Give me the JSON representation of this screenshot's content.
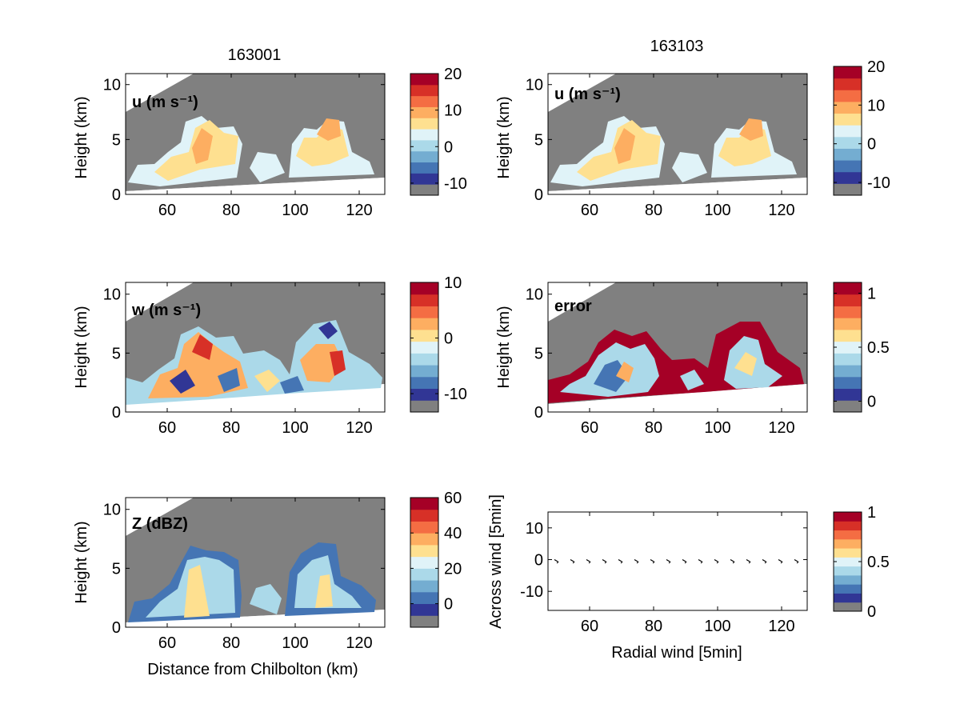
{
  "figure": {
    "titles": [
      "163001",
      "163103"
    ],
    "xlabel_left": "Distance from Chilbolton (km)",
    "ylabel": "Height (km)"
  },
  "colors": {
    "fill_gray": "#808080",
    "cmap": [
      "#313695",
      "#4575b4",
      "#74add1",
      "#abd9e9",
      "#e0f3f8",
      "#fee090",
      "#fdae61",
      "#f46d43",
      "#d73027",
      "#a50026"
    ]
  },
  "chart_data": [
    {
      "type": "heatmap",
      "label": "u (m s⁻¹)",
      "title": "163001",
      "xlim": [
        47,
        128
      ],
      "ylim": [
        0,
        11
      ],
      "x_ticks": [
        60,
        80,
        100,
        120
      ],
      "y_ticks": [
        0,
        5,
        10
      ],
      "xlabel": "",
      "ylabel": "Height (km)",
      "colorbar": {
        "ticks": [
          20,
          10,
          0,
          -10
        ],
        "range": [
          -13.3,
          20
        ]
      },
      "field_estimate_ms": {
        "typical": [
          0,
          8
        ],
        "max": 10
      }
    },
    {
      "type": "heatmap",
      "label": "u (m s⁻¹)",
      "title": "163103",
      "xlim": [
        47,
        128
      ],
      "ylim": [
        0,
        11
      ],
      "x_ticks": [
        60,
        80,
        100,
        120
      ],
      "y_ticks": [
        0,
        5,
        10
      ],
      "xlabel": "",
      "ylabel": "Height (km)",
      "colorbar": {
        "ticks": [
          20,
          10,
          0,
          -10
        ],
        "range": [
          -13.3,
          20
        ]
      },
      "field_estimate_ms": {
        "typical": [
          0,
          8
        ],
        "max": 10
      }
    },
    {
      "type": "heatmap",
      "label": "w (m s⁻¹)",
      "xlim": [
        47,
        128
      ],
      "ylim": [
        0,
        11
      ],
      "x_ticks": [
        60,
        80,
        100,
        120
      ],
      "y_ticks": [
        0,
        5,
        10
      ],
      "xlabel": "",
      "ylabel": "Height (km)",
      "colorbar": {
        "ticks": [
          10,
          0,
          -10
        ],
        "range": [
          -13.3,
          10
        ]
      },
      "field_estimate_ms": {
        "typical": [
          -6,
          6
        ],
        "max": 10,
        "min": -10
      }
    },
    {
      "type": "heatmap",
      "label": "error",
      "xlim": [
        47,
        128
      ],
      "ylim": [
        0,
        11
      ],
      "x_ticks": [
        60,
        80,
        100,
        120
      ],
      "y_ticks": [
        0,
        5,
        10
      ],
      "xlabel": "",
      "ylabel": "Height (km)",
      "colorbar": {
        "ticks": [
          1,
          0.5,
          0
        ],
        "range": [
          -0.1,
          1.1
        ]
      },
      "field_estimate": {
        "interior": [
          0.1,
          0.6
        ],
        "edges": 1
      }
    },
    {
      "type": "heatmap",
      "label": "Z (dBZ)",
      "xlim": [
        47,
        128
      ],
      "ylim": [
        0,
        11
      ],
      "x_ticks": [
        60,
        80,
        100,
        120
      ],
      "y_ticks": [
        0,
        5,
        10
      ],
      "xlabel": "Distance from Chilbolton (km)",
      "ylabel": "Height (km)",
      "colorbar": {
        "ticks": [
          60,
          40,
          20,
          0
        ],
        "range": [
          -13.3,
          60
        ]
      },
      "field_estimate_dbz": {
        "typical": [
          0,
          30
        ],
        "max": 35
      }
    },
    {
      "type": "scatter",
      "label": "",
      "xlim": [
        47,
        128
      ],
      "ylim": [
        -16,
        15
      ],
      "x_ticks": [
        60,
        80,
        100,
        120
      ],
      "y_ticks": [
        10,
        0,
        -10
      ],
      "xlabel": "Radial wind [5min]",
      "ylabel": "Across wind [5min]",
      "colorbar": {
        "ticks": [
          1,
          0.5,
          0
        ],
        "range": [
          0,
          1
        ]
      },
      "arrows": {
        "x": [
          49,
          54,
          59,
          64,
          69,
          74,
          79,
          84,
          89,
          94,
          99,
          104,
          109,
          114,
          119,
          124
        ],
        "y": [
          0,
          0,
          0,
          0,
          0,
          0,
          0,
          0,
          0,
          0,
          0,
          0,
          0,
          0,
          0,
          0
        ]
      }
    }
  ]
}
